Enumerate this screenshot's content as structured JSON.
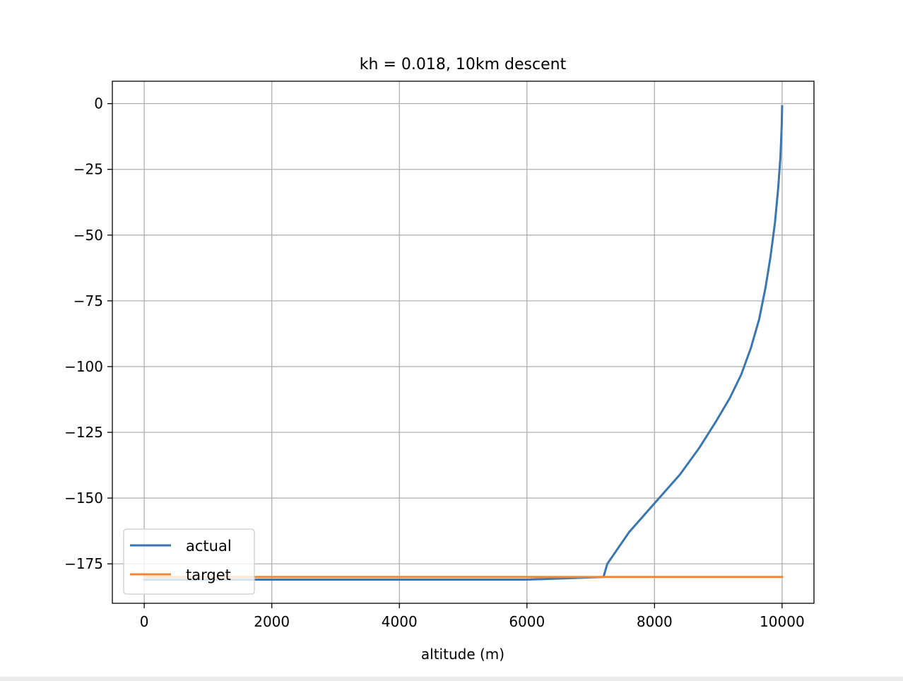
{
  "chart_data": {
    "type": "line",
    "title": "kh = 0.018, 10km descent",
    "xlabel": "altitude (m)",
    "ylabel": "",
    "xlim": [
      -500,
      10500
    ],
    "ylim": [
      -190,
      8.5
    ],
    "xticks": [
      0,
      2000,
      4000,
      6000,
      8000,
      10000
    ],
    "xtick_labels": [
      "0",
      "2000",
      "4000",
      "6000",
      "8000",
      "10000"
    ],
    "yticks": [
      0,
      -25,
      -50,
      -75,
      -100,
      -125,
      -150,
      -175
    ],
    "ytick_labels": [
      "0",
      "−25",
      "−50",
      "−75",
      "−100",
      "−125",
      "−150",
      "−175"
    ],
    "grid": true,
    "legend_position": "lower-left",
    "series": [
      {
        "name": "actual",
        "color": "#3a76af",
        "x": [
          10000,
          9995,
          9975,
          9940,
          9890,
          9820,
          9740,
          9640,
          9510,
          9360,
          9180,
          8960,
          8700,
          8400,
          8000,
          7600,
          7260,
          7200,
          6000,
          4000,
          2000,
          0
        ],
        "y": [
          -1,
          -8,
          -20,
          -32,
          -45,
          -58,
          -70,
          -82,
          -93,
          -103,
          -112,
          -121,
          -131,
          -141,
          -152,
          -163,
          -175,
          -180,
          -181,
          -181,
          -181,
          -181
        ]
      },
      {
        "name": "target",
        "color": "#ef8636",
        "x": [
          0,
          10000
        ],
        "y": [
          -180,
          -180
        ]
      }
    ]
  }
}
